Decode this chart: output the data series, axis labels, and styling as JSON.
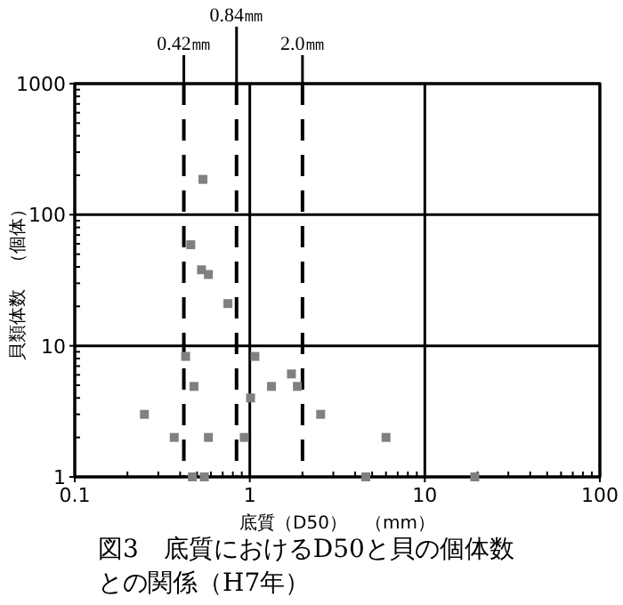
{
  "chart_data": {
    "type": "scatter",
    "title": "図3　底質におけるD50と貝の個体数との関係（H7年）",
    "xlabel": "底質（D50）　（mm）",
    "ylabel": "貝類体数　（個体）",
    "log": "xy",
    "xlim": [
      0.1,
      100
    ],
    "ylim": [
      1,
      1000
    ],
    "xticks": [
      0.1,
      1,
      10,
      100
    ],
    "yticks": [
      1,
      10,
      100,
      1000
    ],
    "grid": true,
    "marker": "square",
    "ref_lines": [
      {
        "axis": "x",
        "value": 0.42,
        "label": "0.42㎜",
        "line_style": "dashed"
      },
      {
        "axis": "x",
        "value": 0.84,
        "label": "0.84㎜",
        "line_style": "dashed"
      },
      {
        "axis": "x",
        "value": 2.0,
        "label": "2.0㎜",
        "line_style": "dashed"
      }
    ],
    "series": [
      {
        "color": "#808080",
        "x": [
          0.54,
          0.46,
          0.53,
          0.58,
          0.75,
          0.43,
          1.07,
          0.48,
          1.33,
          1.73,
          1.87,
          1.01,
          0.25,
          2.54,
          0.37,
          0.58,
          0.93,
          6.0,
          0.47,
          0.55,
          4.6,
          19.3
        ],
        "values": [
          186,
          59,
          38,
          35,
          21,
          8.3,
          8.3,
          4.9,
          4.9,
          6.1,
          4.9,
          4.0,
          3.0,
          3.0,
          2.0,
          2.0,
          2.0,
          2.0,
          1,
          1,
          1,
          1
        ]
      }
    ]
  }
}
